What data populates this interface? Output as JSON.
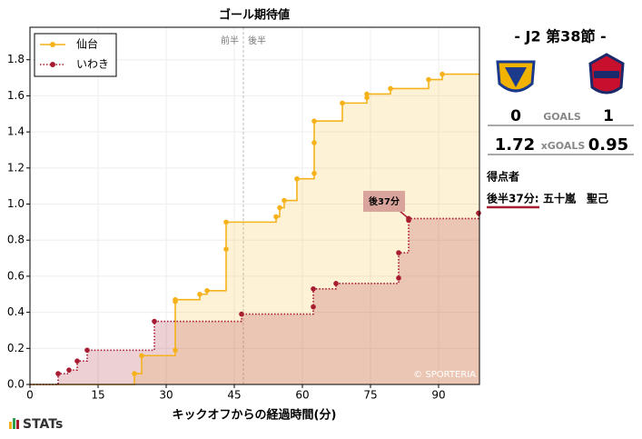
{
  "chart_data": {
    "type": "step",
    "title": "ゴール期待値",
    "xlabel": "キックオフからの経過時間(分)",
    "xlim": [
      0,
      99
    ],
    "xticks": [
      0,
      15,
      30,
      45,
      60,
      75,
      90
    ],
    "ylim": [
      0,
      1.98
    ],
    "yticks": [
      {
        "value": 0,
        "label": "0.0"
      },
      0.2,
      0.4,
      0.6,
      0.8,
      {
        "value": 1,
        "label": "1.0"
      },
      1.2,
      1.4,
      1.6,
      1.8
    ],
    "grid": true,
    "legend": "upper left",
    "series": [
      {
        "name": "仙台",
        "color": "#f5b21b",
        "linestyle": "solid",
        "x": [
          23,
          24.6,
          32,
          32,
          32,
          37.4,
          39,
          43.2,
          43.2,
          54.2,
          55,
          56,
          58.8,
          62.6,
          62.6,
          62.6,
          68.8,
          74.2,
          74.2,
          79.4,
          87.8,
          90.8
        ],
        "values": [
          0.06,
          0.16,
          0.19,
          0.46,
          0.47,
          0.5,
          0.52,
          0.75,
          0.9,
          0.93,
          0.98,
          1.02,
          1.14,
          1.17,
          1.34,
          1.46,
          1.56,
          1.59,
          1.61,
          1.64,
          1.69,
          1.72
        ]
      },
      {
        "name": "いわき",
        "color": "#a81c32",
        "linestyle": "dotted",
        "x": [
          6.2,
          8.6,
          10.4,
          12.6,
          27.4,
          46.6,
          62.4,
          62.4,
          67.4,
          81.2,
          81.2,
          83.4,
          83.4,
          98.8
        ],
        "values": [
          0.06,
          0.08,
          0.13,
          0.19,
          0.35,
          0.39,
          0.43,
          0.53,
          0.56,
          0.59,
          0.73,
          0.91,
          0.92,
          0.95
        ]
      }
    ],
    "halftime": {
      "x": 47,
      "labels": [
        "前半",
        "後半"
      ]
    },
    "annotation": {
      "text": "後37分",
      "x": 83.4,
      "y": 0.92
    },
    "watermark": "© SPORTERIA"
  },
  "panel": {
    "round": "- J2 第38節 -",
    "home_goals": 0,
    "goals_label": "GOALS",
    "away_goals": 1,
    "home_xg": 1.72,
    "xg_label": "xGOALS",
    "away_xg": 0.95,
    "scorers_title": "得点者",
    "scorer_time": "後半37分:",
    "scorer_name": "五十嵐　聖己"
  },
  "brand": "STATs"
}
